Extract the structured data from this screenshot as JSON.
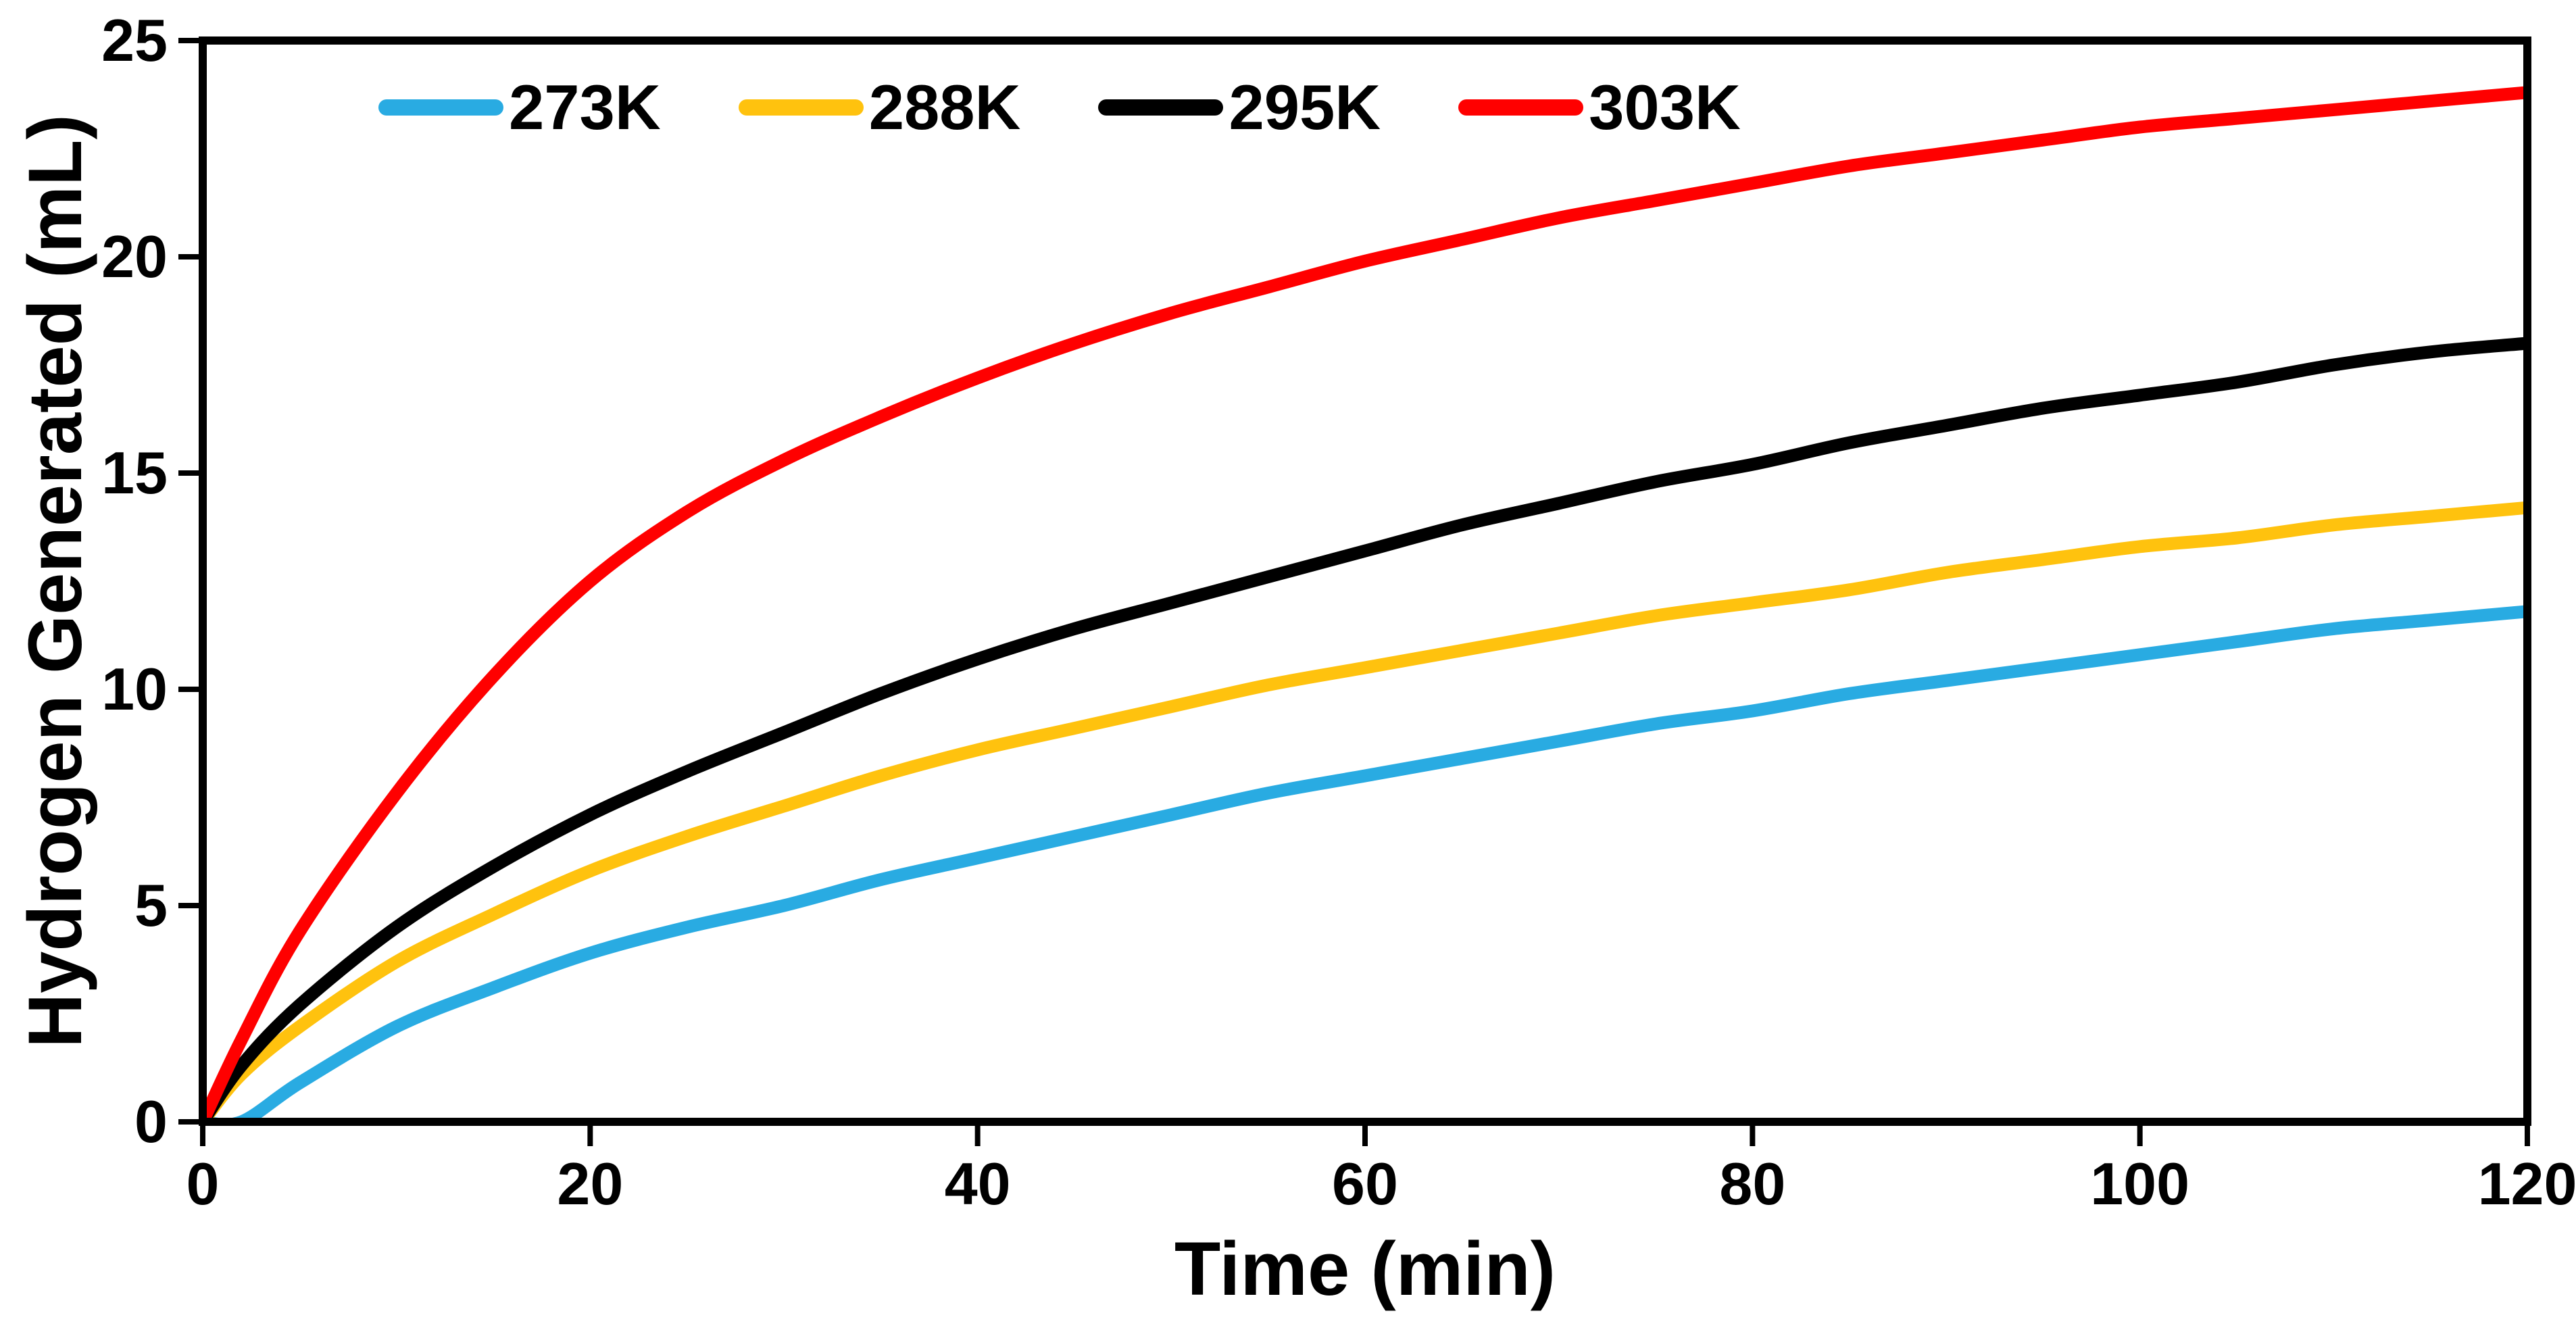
{
  "chart_data": {
    "type": "line",
    "title": "",
    "xlabel": "Time (min)",
    "ylabel": "Hydrogen Generated (mL)",
    "xlim": [
      0,
      120
    ],
    "ylim": [
      0,
      25
    ],
    "xticks": [
      0,
      20,
      40,
      60,
      80,
      100,
      120
    ],
    "yticks": [
      0,
      5,
      10,
      15,
      20,
      25
    ],
    "grid": false,
    "legend_position": "top-inside",
    "frame_color": "#000000",
    "line_width": 19,
    "x": [
      0,
      2,
      5,
      10,
      15,
      20,
      25,
      30,
      35,
      40,
      45,
      50,
      55,
      60,
      65,
      70,
      75,
      80,
      85,
      90,
      95,
      100,
      105,
      110,
      115,
      120
    ],
    "series": [
      {
        "name": "273K",
        "color": "#29ABE2",
        "values": [
          0,
          0.0,
          0.9,
          2.2,
          3.1,
          3.9,
          4.5,
          5.0,
          5.6,
          6.1,
          6.6,
          7.1,
          7.6,
          8.0,
          8.4,
          8.8,
          9.2,
          9.5,
          9.9,
          10.2,
          10.5,
          10.8,
          11.1,
          11.4,
          11.6,
          11.8
        ]
      },
      {
        "name": "288K",
        "color": "#FFC20E",
        "values": [
          0,
          1.1,
          2.2,
          3.7,
          4.8,
          5.8,
          6.6,
          7.3,
          8.0,
          8.6,
          9.1,
          9.6,
          10.1,
          10.5,
          10.9,
          11.3,
          11.7,
          12.0,
          12.3,
          12.7,
          13.0,
          13.3,
          13.5,
          13.8,
          14.0,
          14.2
        ]
      },
      {
        "name": "295K",
        "color": "#000000",
        "values": [
          0,
          1.3,
          2.7,
          4.5,
          5.9,
          7.1,
          8.1,
          9.0,
          9.9,
          10.7,
          11.4,
          12.0,
          12.6,
          13.2,
          13.8,
          14.3,
          14.8,
          15.2,
          15.7,
          16.1,
          16.5,
          16.8,
          17.1,
          17.5,
          17.8,
          18.0
        ]
      },
      {
        "name": "303K",
        "color": "#FF0000",
        "values": [
          0,
          1.9,
          4.4,
          7.6,
          10.3,
          12.5,
          14.1,
          15.3,
          16.3,
          17.2,
          18.0,
          18.7,
          19.3,
          19.9,
          20.4,
          20.9,
          21.3,
          21.7,
          22.1,
          22.4,
          22.7,
          23.0,
          23.2,
          23.4,
          23.6,
          23.8
        ]
      }
    ]
  }
}
